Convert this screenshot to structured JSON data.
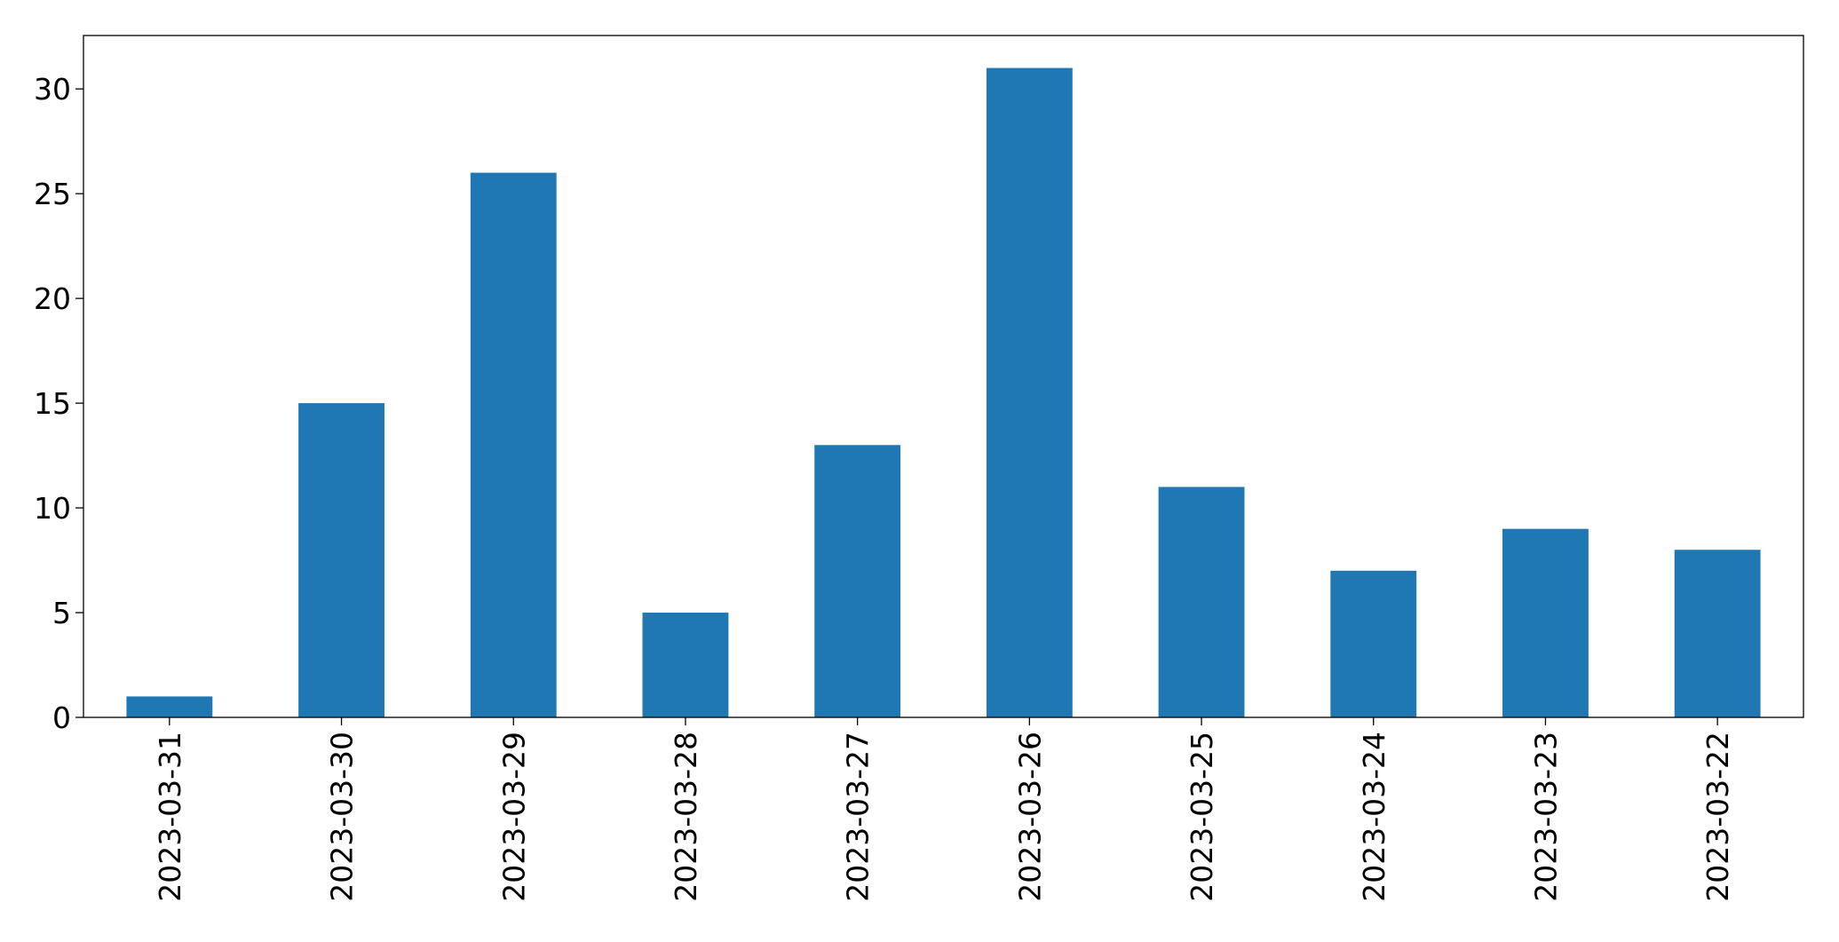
{
  "chart_data": {
    "type": "bar",
    "categories": [
      "2023-03-31",
      "2023-03-30",
      "2023-03-29",
      "2023-03-28",
      "2023-03-27",
      "2023-03-26",
      "2023-03-25",
      "2023-03-24",
      "2023-03-23",
      "2023-03-22"
    ],
    "values": [
      1,
      15,
      26,
      5,
      13,
      31,
      11,
      7,
      9,
      8
    ],
    "color": "#1f77b4",
    "ylim": [
      0,
      32.55
    ],
    "yticks": [
      0,
      5,
      10,
      15,
      20,
      25,
      30
    ],
    "grid": false
  }
}
